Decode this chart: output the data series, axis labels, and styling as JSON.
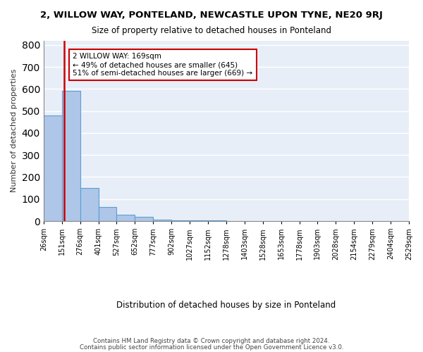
{
  "title": "2, WILLOW WAY, PONTELAND, NEWCASTLE UPON TYNE, NE20 9RJ",
  "subtitle": "Size of property relative to detached houses in Ponteland",
  "xlabel": "Distribution of detached houses by size in Ponteland",
  "ylabel": "Number of detached properties",
  "bar_values": [
    480,
    590,
    150,
    63,
    28,
    20,
    8,
    4,
    2,
    2,
    1,
    1,
    1,
    1,
    0,
    0,
    0,
    0,
    0,
    0
  ],
  "bar_color": "#aec6e8",
  "bar_edge_color": "#5a9fd4",
  "tick_labels": [
    "26sqm",
    "151sqm",
    "276sqm",
    "401sqm",
    "527sqm",
    "652sqm",
    "777sqm",
    "902sqm",
    "1027sqm",
    "1152sqm",
    "1278sqm",
    "1403sqm",
    "1528sqm",
    "1653sqm",
    "1778sqm",
    "1903sqm",
    "2028sqm",
    "2154sqm",
    "2279sqm",
    "2404sqm",
    "2529sqm"
  ],
  "annotation_text": "2 WILLOW WAY: 169sqm\n← 49% of detached houses are smaller (645)\n51% of semi-detached houses are larger (669) →",
  "annotation_box_color": "#ffffff",
  "annotation_box_edge": "#cc0000",
  "footer_line1": "Contains HM Land Registry data © Crown copyright and database right 2024.",
  "footer_line2": "Contains public sector information licensed under the Open Government Licence v3.0.",
  "ylim": [
    0,
    820
  ],
  "yticks": [
    0,
    100,
    200,
    300,
    400,
    500,
    600,
    700,
    800
  ],
  "background_color": "#e8eef8"
}
